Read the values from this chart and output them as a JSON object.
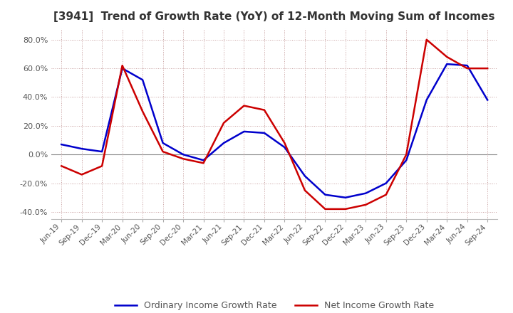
{
  "title": "[3941]  Trend of Growth Rate (YoY) of 12-Month Moving Sum of Incomes",
  "ylim": [
    -0.45,
    0.88
  ],
  "yticks": [
    -0.4,
    -0.2,
    0.0,
    0.2,
    0.4,
    0.6,
    0.8
  ],
  "background_color": "#ffffff",
  "grid_color": "#c8a0a0",
  "legend_labels": [
    "Ordinary Income Growth Rate",
    "Net Income Growth Rate"
  ],
  "line_colors": [
    "#0000cc",
    "#cc0000"
  ],
  "dates": [
    "Jun-19",
    "Sep-19",
    "Dec-19",
    "Mar-20",
    "Jun-20",
    "Sep-20",
    "Dec-20",
    "Mar-21",
    "Jun-21",
    "Sep-21",
    "Dec-21",
    "Mar-22",
    "Jun-22",
    "Sep-22",
    "Dec-22",
    "Mar-23",
    "Jun-23",
    "Sep-23",
    "Dec-23",
    "Mar-24",
    "Jun-24",
    "Sep-24"
  ],
  "ordinary_income": [
    0.07,
    0.04,
    0.02,
    0.6,
    0.52,
    0.08,
    0.0,
    -0.04,
    0.08,
    0.16,
    0.15,
    0.05,
    -0.15,
    -0.28,
    -0.3,
    -0.27,
    -0.2,
    -0.04,
    0.38,
    0.63,
    0.62,
    0.38
  ],
  "net_income": [
    -0.08,
    -0.14,
    -0.08,
    0.62,
    0.3,
    0.02,
    -0.03,
    -0.06,
    0.22,
    0.34,
    0.31,
    0.08,
    -0.25,
    -0.38,
    -0.38,
    -0.35,
    -0.28,
    0.0,
    0.8,
    0.68,
    0.6,
    0.6
  ]
}
